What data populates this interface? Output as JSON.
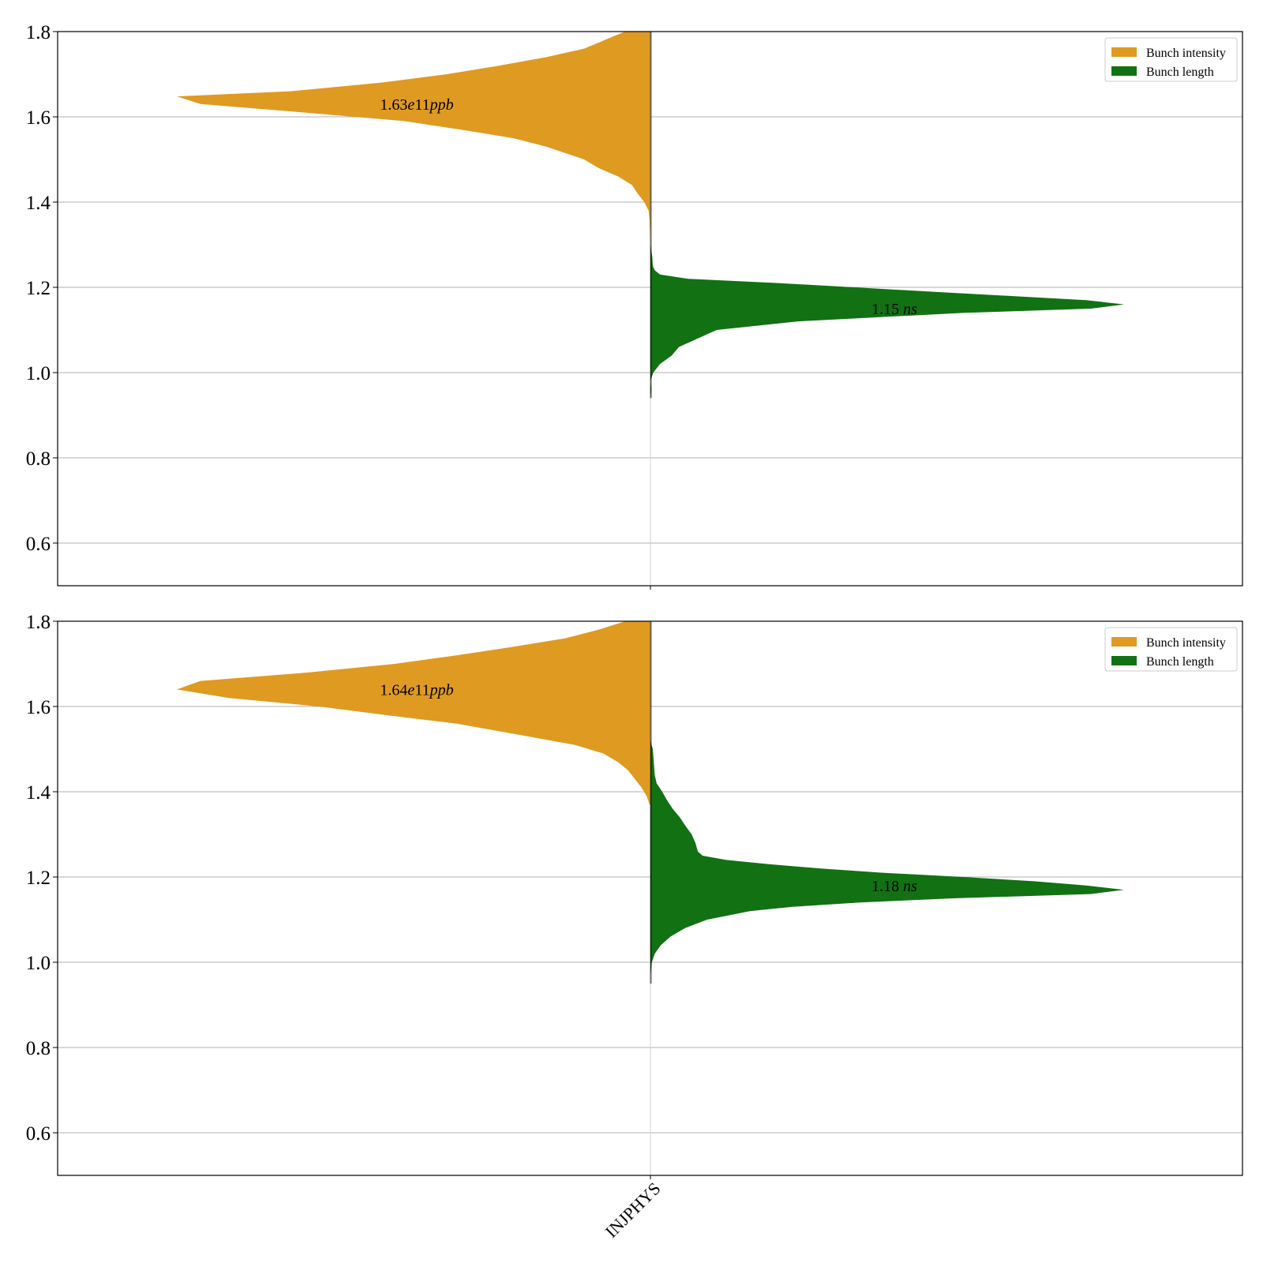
{
  "colors": {
    "intensity": "#df9a22",
    "length": "#127113",
    "grid": "#b0b0b0",
    "rug": "#000000"
  },
  "chart_data": [
    {
      "type": "violin",
      "categories": [
        "INJPHYS"
      ],
      "ylim": [
        0.5,
        1.8
      ],
      "yticks": [
        "0.6",
        "0.8",
        "1.0",
        "1.2",
        "1.4",
        "1.6",
        "1.8"
      ],
      "grid": "horizontal",
      "legend_placement": "top-right",
      "series": [
        {
          "name": "Bunch intensity",
          "side": "left",
          "annotation": "1.63e11ppb",
          "annotation_parts": [
            "1.63",
            "e",
            "11",
            "ppb"
          ],
          "annotation_y": 1.63,
          "profile": [
            [
              1.8,
              0.054
            ],
            [
              1.78,
              0.097
            ],
            [
              1.76,
              0.14
            ],
            [
              1.74,
              0.22
            ],
            [
              1.72,
              0.32
            ],
            [
              1.7,
              0.43
            ],
            [
              1.68,
              0.57
            ],
            [
              1.66,
              0.76
            ],
            [
              1.648,
              1.0
            ],
            [
              1.63,
              0.95
            ],
            [
              1.61,
              0.73
            ],
            [
              1.59,
              0.52
            ],
            [
              1.57,
              0.4
            ],
            [
              1.55,
              0.29
            ],
            [
              1.53,
              0.22
            ],
            [
              1.5,
              0.14
            ],
            [
              1.48,
              0.11
            ],
            [
              1.46,
              0.068
            ],
            [
              1.44,
              0.039
            ],
            [
              1.42,
              0.027
            ],
            [
              1.4,
              0.013
            ],
            [
              1.38,
              0.004
            ],
            [
              1.36,
              0.002
            ],
            [
              1.3,
              0.0
            ]
          ]
        },
        {
          "name": "Bunch length",
          "side": "right",
          "annotation": "1.15 ns",
          "annotation_parts": [
            "1.15 ",
            "ns"
          ],
          "annotation_y": 1.15,
          "profile": [
            [
              1.3,
              0.0
            ],
            [
              1.27,
              0.004
            ],
            [
              1.25,
              0.005
            ],
            [
              1.24,
              0.009
            ],
            [
              1.23,
              0.02
            ],
            [
              1.22,
              0.08
            ],
            [
              1.21,
              0.27
            ],
            [
              1.19,
              0.59
            ],
            [
              1.17,
              0.92
            ],
            [
              1.16,
              1.0
            ],
            [
              1.15,
              0.93
            ],
            [
              1.14,
              0.66
            ],
            [
              1.12,
              0.31
            ],
            [
              1.1,
              0.14
            ],
            [
              1.08,
              0.1
            ],
            [
              1.06,
              0.06
            ],
            [
              1.04,
              0.045
            ],
            [
              1.02,
              0.02
            ],
            [
              1.0,
              0.006
            ],
            [
              0.98,
              0.0
            ],
            [
              0.96,
              0.002
            ],
            [
              0.94,
              0.0
            ]
          ]
        }
      ]
    },
    {
      "type": "violin",
      "categories": [
        "INJPHYS"
      ],
      "ylim": [
        0.5,
        1.8
      ],
      "yticks": [
        "0.6",
        "0.8",
        "1.0",
        "1.2",
        "1.4",
        "1.6",
        "1.8"
      ],
      "grid": "horizontal",
      "legend_placement": "top-right",
      "series": [
        {
          "name": "Bunch intensity",
          "side": "left",
          "annotation": "1.64e11ppb",
          "annotation_parts": [
            "1.64",
            "e",
            "11",
            "ppb"
          ],
          "annotation_y": 1.64,
          "profile": [
            [
              1.8,
              0.053
            ],
            [
              1.78,
              0.11
            ],
            [
              1.76,
              0.18
            ],
            [
              1.74,
              0.29
            ],
            [
              1.72,
              0.41
            ],
            [
              1.7,
              0.54
            ],
            [
              1.68,
              0.72
            ],
            [
              1.66,
              0.95
            ],
            [
              1.64,
              1.0
            ],
            [
              1.62,
              0.89
            ],
            [
              1.6,
              0.7
            ],
            [
              1.58,
              0.56
            ],
            [
              1.56,
              0.41
            ],
            [
              1.53,
              0.26
            ],
            [
              1.51,
              0.16
            ],
            [
              1.49,
              0.1
            ],
            [
              1.47,
              0.069
            ],
            [
              1.45,
              0.047
            ],
            [
              1.43,
              0.033
            ],
            [
              1.41,
              0.019
            ],
            [
              1.39,
              0.008
            ],
            [
              1.37,
              0.002
            ]
          ]
        },
        {
          "name": "Bunch length",
          "side": "right",
          "annotation": "1.18 ns",
          "annotation_parts": [
            "1.18 ",
            "ns"
          ],
          "annotation_y": 1.18,
          "profile": [
            [
              1.52,
              0.0
            ],
            [
              1.5,
              0.005
            ],
            [
              1.47,
              0.007
            ],
            [
              1.44,
              0.009
            ],
            [
              1.42,
              0.013
            ],
            [
              1.4,
              0.025
            ],
            [
              1.38,
              0.035
            ],
            [
              1.36,
              0.047
            ],
            [
              1.34,
              0.062
            ],
            [
              1.32,
              0.074
            ],
            [
              1.3,
              0.087
            ],
            [
              1.28,
              0.095
            ],
            [
              1.26,
              0.1
            ],
            [
              1.25,
              0.11
            ],
            [
              1.24,
              0.16
            ],
            [
              1.23,
              0.25
            ],
            [
              1.22,
              0.36
            ],
            [
              1.21,
              0.49
            ],
            [
              1.2,
              0.66
            ],
            [
              1.19,
              0.81
            ],
            [
              1.18,
              0.92
            ],
            [
              1.17,
              1.0
            ],
            [
              1.16,
              0.93
            ],
            [
              1.15,
              0.64
            ],
            [
              1.14,
              0.44
            ],
            [
              1.13,
              0.3
            ],
            [
              1.12,
              0.21
            ],
            [
              1.1,
              0.12
            ],
            [
              1.08,
              0.073
            ],
            [
              1.06,
              0.042
            ],
            [
              1.04,
              0.022
            ],
            [
              1.02,
              0.009
            ],
            [
              1.0,
              0.003
            ],
            [
              0.97,
              0.0
            ],
            [
              0.95,
              0.0
            ]
          ]
        }
      ]
    }
  ]
}
